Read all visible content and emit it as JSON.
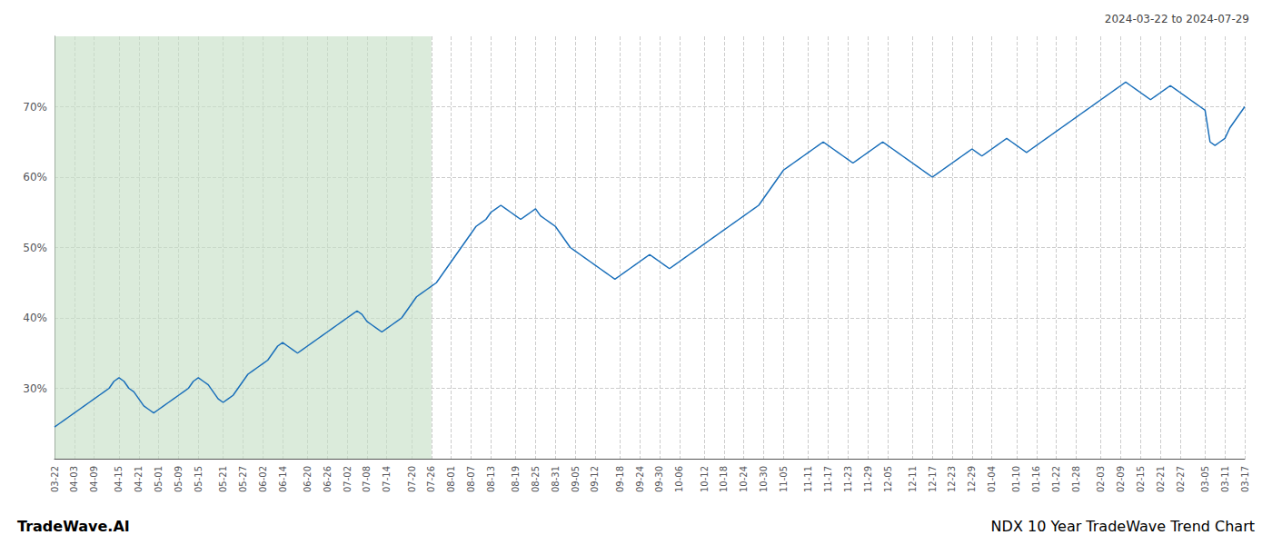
{
  "chart_data": {
    "type": "line",
    "title": "NDX 10 Year TradeWave Trend Chart",
    "subtitle": "2024-03-22 to 2024-07-29",
    "annotations": [
      {
        "text": "TradeWave.AI"
      }
    ],
    "color": "#1a6fba",
    "grid": true,
    "spans": [
      {
        "start": "03-22",
        "end": "07-26",
        "color": "#c8e0c8"
      }
    ],
    "ylim": [
      20,
      80
    ],
    "yticks": [
      {
        "value": 30,
        "label": "30%"
      },
      {
        "value": 40,
        "label": "40%"
      },
      {
        "value": 50,
        "label": "50%"
      },
      {
        "value": 60,
        "label": "60%"
      },
      {
        "value": 70,
        "label": "70%"
      }
    ],
    "categories": [
      "03-22",
      null,
      null,
      null,
      "04-03",
      null,
      null,
      null,
      "04-09",
      null,
      null,
      null,
      null,
      "04-15",
      null,
      null,
      null,
      "04-21",
      null,
      null,
      null,
      "05-01",
      null,
      null,
      null,
      "05-09",
      null,
      null,
      null,
      "05-15",
      null,
      null,
      null,
      null,
      "05-21",
      null,
      null,
      null,
      "05-27",
      null,
      null,
      null,
      "06-02",
      null,
      null,
      null,
      "06-14",
      null,
      null,
      null,
      null,
      "06-20",
      null,
      null,
      null,
      "06-26",
      null,
      null,
      null,
      "07-02",
      null,
      null,
      null,
      "07-08",
      null,
      null,
      null,
      "07-14",
      null,
      null,
      null,
      null,
      "07-20",
      null,
      null,
      null,
      "07-26",
      null,
      null,
      null,
      "08-01",
      null,
      null,
      null,
      "08-07",
      null,
      null,
      null,
      "08-13",
      null,
      null,
      null,
      null,
      "08-19",
      null,
      null,
      null,
      "08-25",
      null,
      null,
      null,
      "08-31",
      null,
      null,
      null,
      "09-05",
      null,
      null,
      null,
      "09-12",
      null,
      null,
      null,
      null,
      "09-18",
      null,
      null,
      null,
      "09-24",
      null,
      null,
      null,
      "09-30",
      null,
      null,
      null,
      "10-06",
      null,
      null,
      null,
      null,
      "10-12",
      null,
      null,
      null,
      "10-18",
      null,
      null,
      null,
      "10-24",
      null,
      null,
      null,
      "10-30",
      null,
      null,
      null,
      "11-05",
      null,
      null,
      null,
      null,
      "11-11",
      null,
      null,
      null,
      "11-17",
      null,
      null,
      null,
      "11-23",
      null,
      null,
      null,
      "11-29",
      null,
      null,
      null,
      "12-05",
      null,
      null,
      null,
      null,
      "12-11",
      null,
      null,
      null,
      "12-17",
      null,
      null,
      null,
      "12-23",
      null,
      null,
      null,
      "12-29",
      null,
      null,
      null,
      "01-04",
      null,
      null,
      null,
      null,
      "01-10",
      null,
      null,
      null,
      "01-16",
      null,
      null,
      null,
      "01-22",
      null,
      null,
      null,
      "01-28",
      null,
      null,
      null,
      null,
      "02-03",
      null,
      null,
      null,
      "02-09",
      null,
      null,
      null,
      "02-15",
      null,
      null,
      null,
      "02-21",
      null,
      null,
      null,
      "02-27",
      null,
      null,
      null,
      null,
      "03-05",
      null,
      null,
      null,
      "03-11",
      null,
      null,
      null,
      "03-17"
    ],
    "values": [
      24.5,
      25.0,
      25.5,
      26.0,
      26.5,
      27.0,
      27.5,
      28.0,
      28.5,
      29.0,
      29.5,
      30.0,
      31.0,
      31.5,
      31.0,
      30.0,
      29.5,
      28.5,
      27.5,
      27.0,
      26.5,
      27.0,
      27.5,
      28.0,
      28.5,
      29.0,
      29.5,
      30.0,
      31.0,
      31.5,
      31.0,
      30.5,
      29.5,
      28.5,
      28.0,
      28.5,
      29.0,
      30.0,
      31.0,
      32.0,
      32.5,
      33.0,
      33.5,
      34.0,
      35.0,
      36.0,
      36.5,
      36.0,
      35.5,
      35.0,
      35.5,
      36.0,
      36.5,
      37.0,
      37.5,
      38.0,
      38.5,
      39.0,
      39.5,
      40.0,
      40.5,
      41.0,
      40.5,
      39.5,
      39.0,
      38.5,
      38.0,
      38.5,
      39.0,
      39.5,
      40.0,
      41.0,
      42.0,
      43.0,
      43.5,
      44.0,
      44.5,
      45.0,
      46.0,
      47.0,
      48.0,
      49.0,
      50.0,
      51.0,
      52.0,
      53.0,
      53.5,
      54.0,
      55.0,
      55.5,
      56.0,
      55.5,
      55.0,
      54.5,
      54.0,
      54.5,
      55.0,
      55.5,
      54.5,
      54.0,
      53.5,
      53.0,
      52.0,
      51.0,
      50.0,
      49.5,
      49.0,
      48.5,
      48.0,
      47.5,
      47.0,
      46.5,
      46.0,
      45.5,
      46.0,
      46.5,
      47.0,
      47.5,
      48.0,
      48.5,
      49.0,
      48.5,
      48.0,
      47.5,
      47.0,
      47.5,
      48.0,
      48.5,
      49.0,
      49.5,
      50.0,
      50.5,
      51.0,
      51.5,
      52.0,
      52.5,
      53.0,
      53.5,
      54.0,
      54.5,
      55.0,
      55.5,
      56.0,
      57.0,
      58.0,
      59.0,
      60.0,
      61.0,
      61.5,
      62.0,
      62.5,
      63.0,
      63.5,
      64.0,
      64.5,
      65.0,
      64.5,
      64.0,
      63.5,
      63.0,
      62.5,
      62.0,
      62.5,
      63.0,
      63.5,
      64.0,
      64.5,
      65.0,
      64.5,
      64.0,
      63.5,
      63.0,
      62.5,
      62.0,
      61.5,
      61.0,
      60.5,
      60.0,
      60.5,
      61.0,
      61.5,
      62.0,
      62.5,
      63.0,
      63.5,
      64.0,
      63.5,
      63.0,
      63.5,
      64.0,
      64.5,
      65.0,
      65.5,
      65.0,
      64.5,
      64.0,
      63.5,
      64.0,
      64.5,
      65.0,
      65.5,
      66.0,
      66.5,
      67.0,
      67.5,
      68.0,
      68.5,
      69.0,
      69.5,
      70.0,
      70.5,
      71.0,
      71.5,
      72.0,
      72.5,
      73.0,
      73.5,
      73.0,
      72.5,
      72.0,
      71.5,
      71.0,
      71.5,
      72.0,
      72.5,
      73.0,
      72.5,
      72.0,
      71.5,
      71.0,
      70.5,
      70.0,
      69.5,
      65.0,
      64.5,
      65.0,
      65.5,
      67.0,
      68.0,
      69.0,
      70.0
    ]
  }
}
